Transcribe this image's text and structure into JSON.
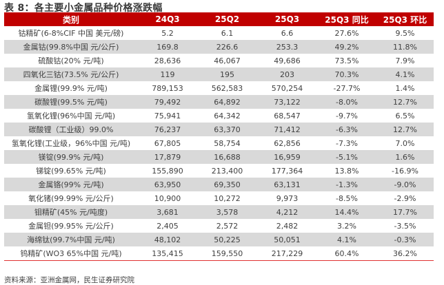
{
  "title": "表 8：各主要小金属品种价格涨跌幅",
  "table": {
    "headers": [
      "类别",
      "24Q3",
      "25Q2",
      "25Q3",
      "25Q3 同比",
      "25Q3 环比"
    ],
    "rows": [
      [
        "钴精矿(6-8%CIF 中国  美元/磅)",
        "5.2",
        "6.1",
        "6.6",
        "27.6%",
        "9.5%"
      ],
      [
        "金属钴(99.8%中国  元/公斤)",
        "169.8",
        "226.6",
        "253.3",
        "49.2%",
        "11.8%"
      ],
      [
        "硫酸钴(20%  元/吨)",
        "28,636",
        "46,067",
        "49,686",
        "73.5%",
        "7.9%"
      ],
      [
        "四氧化三钴(73.5%  元/公斤)",
        "119",
        "195",
        "203",
        "70.3%",
        "4.1%"
      ],
      [
        "金属锂(99.9%  元/吨)",
        "789,153",
        "562,583",
        "570,254",
        "-27.7%",
        "1.4%"
      ],
      [
        "碳酸锂(99.5%  元/吨)",
        "79,492",
        "64,892",
        "73,122",
        "-8.0%",
        "12.7%"
      ],
      [
        "氢氧化锂(96%中国  元/吨)",
        "75,941",
        "64,342",
        "68,547",
        "-9.7%",
        "6.5%"
      ],
      [
        "碳酸锂（工业级）99.0%",
        "76,237",
        "63,370",
        "71,412",
        "-6.3%",
        "12.7%"
      ],
      [
        "氢氧化锂(工业级，96%中国  元/吨)",
        "67,805",
        "58,754",
        "62,856",
        "-7.3%",
        "7.0%"
      ],
      [
        "镁锭(99.9%  元/吨)",
        "17,879",
        "16,688",
        "16,959",
        "-5.1%",
        "1.6%"
      ],
      [
        "锑锭(99.65%  元/吨)",
        "155,890",
        "213,400",
        "177,364",
        "13.8%",
        "-16.9%"
      ],
      [
        "金属铬(99%  元/吨)",
        "63,950",
        "69,350",
        "63,131",
        "-1.3%",
        "-9.0%"
      ],
      [
        "氧化锗(99.99%  元/公斤)",
        "10,900",
        "10,272",
        "9,973",
        "-8.5%",
        "-2.9%"
      ],
      [
        "钼精矿(45%  元/吨度)",
        "3,681",
        "3,578",
        "4,212",
        "14.4%",
        "17.7%"
      ],
      [
        "金属钽(99.95%  元/公斤)",
        "2,405",
        "2,572",
        "2,482",
        "3.2%",
        "-3.5%"
      ],
      [
        "海绵钛(99.7%中国  元/吨)",
        "48,102",
        "50,225",
        "50,051",
        "4.1%",
        "-0.3%"
      ],
      [
        "钨精矿(WO3 65%中国  元/吨)",
        "135,415",
        "159,550",
        "217,229",
        "60.4%",
        "36.2%"
      ]
    ]
  },
  "source": "资料来源：亚洲金属网，民生证券研究院",
  "colors": {
    "header_bg": "#c00000",
    "stripe_bg": "#d9d9d9",
    "rule": "#e03030"
  }
}
